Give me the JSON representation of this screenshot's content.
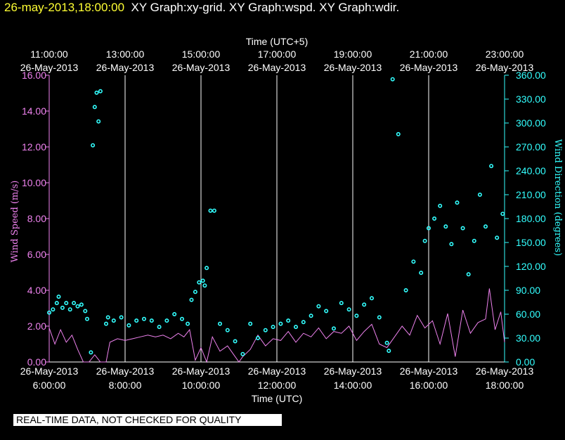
{
  "header": {
    "stamp": "26-may-2013,18:00:00",
    "graphs": "XY Graph:xy-grid.  XY Graph:wspd.  XY Graph:wdir."
  },
  "footer": {
    "qc_note": "REAL-TIME DATA, NOT CHECKED FOR QUALITY"
  },
  "colors": {
    "speed": "#ee82ee",
    "direction": "#33ffff",
    "grid": "#ffffff",
    "axis_text": "#ffffff"
  },
  "chart_data": {
    "type": "line",
    "title": "",
    "x_bottom": {
      "title": "Time (UTC)",
      "range_hours": [
        6.0,
        18.0
      ],
      "ticks": [
        {
          "hour": 6,
          "date": "26-May-2013",
          "time": "6:00:00"
        },
        {
          "hour": 8,
          "date": "26-May-2013",
          "time": "8:00:00"
        },
        {
          "hour": 10,
          "date": "26-May-2013",
          "time": "10:00:00"
        },
        {
          "hour": 12,
          "date": "26-May-2013",
          "time": "12:00:00"
        },
        {
          "hour": 14,
          "date": "26-May-2013",
          "time": "14:00:00"
        },
        {
          "hour": 16,
          "date": "26-May-2013",
          "time": "16:00:00"
        },
        {
          "hour": 18,
          "date": "26-May-2013",
          "time": "18:00:00"
        }
      ]
    },
    "x_top": {
      "title": "Time (UTC+5)",
      "ticks": [
        {
          "hour": 6,
          "time": "11:00:00",
          "date": "26-May-2013"
        },
        {
          "hour": 8,
          "time": "13:00:00",
          "date": "26-May-2013"
        },
        {
          "hour": 10,
          "time": "15:00:00",
          "date": "26-May-2013"
        },
        {
          "hour": 12,
          "time": "17:00:00",
          "date": "26-May-2013"
        },
        {
          "hour": 14,
          "time": "19:00:00",
          "date": "26-May-2013"
        },
        {
          "hour": 16,
          "time": "21:00:00",
          "date": "26-May-2013"
        },
        {
          "hour": 18,
          "time": "23:00:00",
          "date": "26-May-2013"
        }
      ]
    },
    "y_left": {
      "title": "Wind Speed (m/s)",
      "range": [
        0,
        16
      ],
      "ticks": [
        "0.00",
        "2.00",
        "4.00",
        "6.00",
        "8.00",
        "10.00",
        "12.00",
        "14.00",
        "16.00"
      ]
    },
    "y_right": {
      "title": "Wind Direction (degrees)",
      "range": [
        0,
        360
      ],
      "ticks": [
        "0.00",
        "30.00",
        "60.00",
        "90.00",
        "120.00",
        "150.00",
        "180.00",
        "210.00",
        "240.00",
        "270.00",
        "300.00",
        "330.00",
        "360.00"
      ]
    },
    "grid": "vertical at x ticks",
    "series": [
      {
        "name": "Wind Speed",
        "axis": "left",
        "style": "line",
        "x": [
          6.0,
          6.15,
          6.3,
          6.45,
          6.6,
          6.75,
          6.9,
          7.05,
          7.2,
          7.35,
          7.5,
          7.6,
          7.8,
          8.0,
          8.2,
          8.4,
          8.6,
          8.8,
          9.0,
          9.2,
          9.4,
          9.55,
          9.7,
          9.85,
          10.0,
          10.15,
          10.3,
          10.5,
          10.7,
          10.9,
          11.0,
          11.1,
          11.3,
          11.5,
          11.7,
          11.9,
          12.1,
          12.3,
          12.5,
          12.7,
          12.9,
          13.1,
          13.3,
          13.5,
          13.7,
          13.9,
          14.1,
          14.3,
          14.5,
          14.7,
          14.9,
          15.1,
          15.3,
          15.5,
          15.7,
          15.9,
          16.1,
          16.3,
          16.5,
          16.7,
          16.9,
          17.1,
          17.3,
          17.5,
          17.6,
          17.75,
          17.9,
          18.0
        ],
        "values": [
          1.9,
          1.0,
          1.8,
          1.1,
          1.5,
          0.7,
          0.0,
          0.0,
          0.4,
          0.0,
          0.0,
          1.1,
          1.3,
          1.2,
          1.3,
          1.4,
          1.5,
          1.4,
          1.5,
          1.3,
          1.6,
          1.4,
          1.8,
          0.1,
          0.8,
          0.0,
          1.4,
          0.6,
          0.9,
          0.3,
          0.0,
          0.3,
          0.7,
          1.5,
          0.9,
          1.3,
          1.2,
          1.7,
          1.1,
          1.6,
          1.4,
          1.9,
          1.3,
          1.7,
          1.6,
          2.0,
          1.2,
          1.7,
          2.1,
          1.0,
          0.8,
          1.4,
          2.0,
          1.5,
          2.6,
          1.9,
          2.3,
          1.0,
          2.7,
          0.3,
          2.9,
          1.6,
          2.2,
          2.4,
          4.1,
          1.8,
          2.8,
          1.1
        ]
      },
      {
        "name": "Wind Direction",
        "axis": "right",
        "style": "points",
        "x": [
          6.0,
          6.1,
          6.2,
          6.25,
          6.35,
          6.45,
          6.55,
          6.65,
          6.75,
          6.85,
          6.95,
          7.0,
          7.1,
          7.15,
          7.2,
          7.25,
          7.3,
          7.35,
          7.5,
          7.55,
          7.7,
          7.9,
          8.1,
          8.3,
          8.5,
          8.7,
          8.9,
          9.1,
          9.3,
          9.5,
          9.65,
          9.75,
          9.85,
          9.95,
          10.05,
          10.1,
          10.15,
          10.25,
          10.35,
          10.5,
          10.7,
          10.9,
          11.1,
          11.3,
          11.5,
          11.7,
          11.9,
          12.1,
          12.3,
          12.5,
          12.7,
          12.9,
          13.1,
          13.3,
          13.5,
          13.7,
          13.9,
          14.1,
          14.3,
          14.5,
          14.7,
          14.9,
          14.95,
          15.05,
          15.2,
          15.4,
          15.6,
          15.8,
          15.9,
          16.0,
          16.15,
          16.3,
          16.45,
          16.6,
          16.75,
          16.9,
          17.05,
          17.2,
          17.35,
          17.5,
          17.65,
          17.8,
          17.95
        ],
        "values": [
          62,
          66,
          74,
          82,
          68,
          74,
          66,
          74,
          70,
          72,
          64,
          54,
          12,
          272,
          320,
          338,
          302,
          340,
          48,
          56,
          52,
          56,
          46,
          52,
          54,
          52,
          44,
          52,
          60,
          54,
          48,
          78,
          88,
          100,
          102,
          96,
          118,
          190,
          190,
          48,
          40,
          26,
          10,
          48,
          30,
          40,
          44,
          48,
          52,
          44,
          50,
          58,
          70,
          64,
          42,
          74,
          66,
          58,
          72,
          80,
          56,
          24,
          14,
          355,
          286,
          90,
          126,
          112,
          152,
          168,
          180,
          196,
          170,
          148,
          200,
          168,
          110,
          152,
          210,
          170,
          246,
          156,
          186
        ]
      }
    ]
  }
}
